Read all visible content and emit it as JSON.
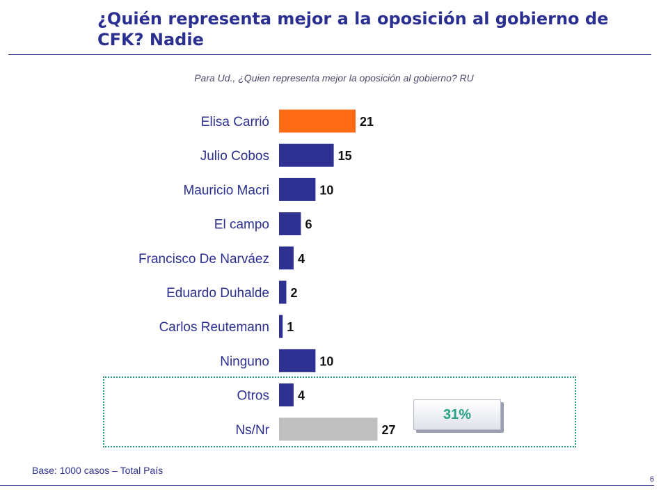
{
  "header": {
    "title": "¿Quién representa mejor a la oposición al gobierno de CFK? Nadie",
    "subtitle": "Para Ud., ¿Quien representa mejor la oposición al gobierno? RU"
  },
  "chart_data": {
    "type": "bar",
    "orientation": "horizontal",
    "categories": [
      "Elisa Carrió",
      "Julio Cobos",
      "Mauricio Macri",
      "El campo",
      "Francisco De Narváez",
      "Eduardo Duhalde",
      "Carlos Reutemann",
      "Ninguno",
      "Otros",
      "Ns/Nr"
    ],
    "values": [
      21,
      15,
      10,
      6,
      4,
      2,
      1,
      10,
      4,
      27
    ],
    "colors": [
      "#ff6a14",
      "#2e3192",
      "#2e3192",
      "#2e3192",
      "#2e3192",
      "#2e3192",
      "#2e3192",
      "#2e3192",
      "#2e3192",
      "#c0c0c0"
    ],
    "xlim": [
      0,
      30
    ],
    "grid": false,
    "legend": "none"
  },
  "callout": {
    "label": "31%"
  },
  "footer": {
    "base": "Base: 1000 casos – Total  País",
    "page_number": "6"
  }
}
